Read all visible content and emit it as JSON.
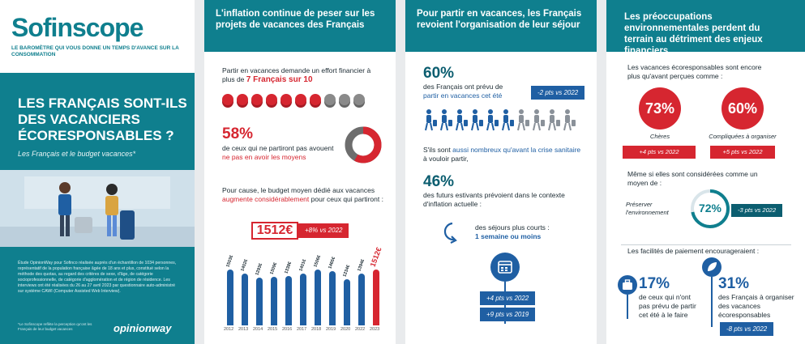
{
  "brand": {
    "logo": "Sofinscope",
    "tagline": "LE BAROMÈTRE QUI VOUS DONNE UN TEMPS D'AVANCE SUR LA CONSOMMATION"
  },
  "title": {
    "lines": [
      "LES FRANÇAIS SONT-ILS",
      "DES VACANCIERS",
      "ÉCORESPONSABLES ?"
    ],
    "subtitle": "Les Français et le budget vacances*"
  },
  "method": "Étude OpinionWay pour Sofinco réalisée auprès d'un échantillon de 1034 personnes, représentatif de la population française âgée de 18 ans et plus, constitué selon la méthode des quotas, au regard des critères de sexe, d'âge, de catégorie socioprofessionnelle, de catégorie d'agglomération et de région de résidence. Les interviews ont été réalisées du 26 au 27 avril 2023 par questionnaire auto-administré sur système CAWI (Computer Assisted Web Interview).",
  "footnote": "*Le Sofinscope reflète la perception qu'ont les Français de leur budget vacances",
  "partner": "opinionway",
  "s1": {
    "header": "L'inflation continue de peser sur les projets de vacances des Français",
    "intro": "Partir en vacances demande un effort financier à plus de",
    "intro_highlight": "7 Français sur 10",
    "stat": "58%",
    "stat_text": "de ceux qui ne partiront pas avouent",
    "stat_highlight": "ne pas en avoir les moyens",
    "budget_text_a": "Pour cause, le budget moyen dédié aux vacances",
    "budget_highlight": "augmente considérablement",
    "budget_text_b": "pour ceux qui partiront :",
    "budget_value": "1512€",
    "budget_delta": "+8% vs 2022"
  },
  "chart_data": {
    "type": "bar",
    "categories": [
      "2012",
      "2013",
      "2014",
      "2015",
      "2016",
      "2017",
      "2018",
      "2019",
      "2020",
      "2022",
      "2023"
    ],
    "values": [
      1503,
      1402,
      1293,
      1309,
      1338,
      1401,
      1506,
      1465,
      1234,
      1394,
      1512
    ],
    "labels": [
      "1503€",
      "1402€",
      "1293€",
      "1309€",
      "1338€",
      "1401€",
      "1506€",
      "1465€",
      "1234€",
      "1394€",
      "1512€"
    ],
    "highlight_index": 10,
    "colors": {
      "bar": "#1f5fa3",
      "highlight": "#d62630"
    }
  },
  "s2": {
    "header": "Pour partir en vacances, les Français revoient l'organisation de leur séjour",
    "stat1": "60%",
    "stat1_text": "des Français ont prévu de",
    "stat1_highlight": "partir en vacances cet été",
    "stat1_delta": "-2 pts vs 2022",
    "line2_a": "S'ils sont",
    "line2_highlight": "aussi nombreux qu'avant la crise sanitaire",
    "line2_b": "à vouloir partir,",
    "stat2": "46%",
    "stat2_text": "des futurs estivants prévoient dans le contexte d'inflation actuelle :",
    "choice": "des séjours plus courts :",
    "choice_highlight": "1 semaine ou moins",
    "delta1": "+4 pts vs 2022",
    "delta2": "+9 pts vs 2019"
  },
  "s3": {
    "header": "Les préoccupations environnementales perdent du terrain au détriment des enjeux financiers",
    "intro": "Les vacances écoresponsables sont encore plus qu'avant perçues comme :",
    "c1": {
      "value": "73%",
      "label": "Chères",
      "delta": "+4 pts vs 2022"
    },
    "c2": {
      "value": "60%",
      "label": "Compliquées à organiser",
      "delta": "+5 pts vs 2022"
    },
    "mid": "Même si elles sont considérées comme un moyen de :",
    "pres_label": "Préserver l'environnement",
    "pres_value": "72%",
    "pres_delta": "-3 pts vs 2022",
    "pay_title": "Les facilités de paiement encourageraient :",
    "p1_value": "17%",
    "p1_text": "de ceux qui n'ont pas prévu de partir cet été à le faire",
    "p2_value": "31%",
    "p2_text": "des Français à organiser des vacances écoresponsables",
    "p2_delta": "-8 pts vs 2022"
  }
}
